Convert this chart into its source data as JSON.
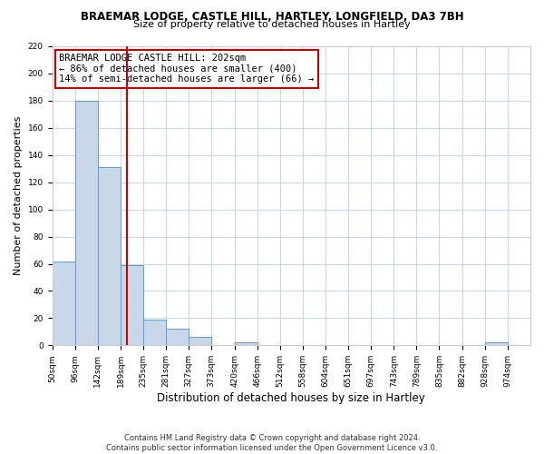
{
  "title": "BRAEMAR LODGE, CASTLE HILL, HARTLEY, LONGFIELD, DA3 7BH",
  "subtitle": "Size of property relative to detached houses in Hartley",
  "xlabel": "Distribution of detached houses by size in Hartley",
  "ylabel": "Number of detached properties",
  "footer_line1": "Contains HM Land Registry data © Crown copyright and database right 2024.",
  "footer_line2": "Contains public sector information licensed under the Open Government Licence v3.0.",
  "bins": [
    50,
    96,
    142,
    189,
    235,
    281,
    327,
    373,
    420,
    466,
    512,
    558,
    604,
    651,
    697,
    743,
    789,
    835,
    882,
    928,
    974
  ],
  "counts": [
    62,
    180,
    131,
    59,
    19,
    12,
    6,
    0,
    2,
    0,
    0,
    0,
    0,
    0,
    0,
    0,
    0,
    0,
    0,
    2
  ],
  "bar_color": "#c8d8e8",
  "bar_edge_color": "#5b9bd5",
  "vline_x": 202,
  "vline_color": "#cc0000",
  "annotation_box_color": "#cc0000",
  "annotation_line1": "BRAEMAR LODGE CASTLE HILL: 202sqm",
  "annotation_line2": "← 86% of detached houses are smaller (400)",
  "annotation_line3": "14% of semi-detached houses are larger (66) →",
  "ylim": [
    0,
    220
  ],
  "yticks": [
    0,
    20,
    40,
    60,
    80,
    100,
    120,
    140,
    160,
    180,
    200,
    220
  ],
  "tick_labels": [
    "50sqm",
    "96sqm",
    "142sqm",
    "189sqm",
    "235sqm",
    "281sqm",
    "327sqm",
    "373sqm",
    "420sqm",
    "466sqm",
    "512sqm",
    "558sqm",
    "604sqm",
    "651sqm",
    "697sqm",
    "743sqm",
    "789sqm",
    "835sqm",
    "882sqm",
    "928sqm",
    "974sqm"
  ],
  "grid_color": "#c8d8e8",
  "bg_color": "#ffffff",
  "title_fontsize": 8.5,
  "subtitle_fontsize": 8.0,
  "xlabel_fontsize": 8.5,
  "ylabel_fontsize": 8.0,
  "tick_fontsize": 6.5,
  "annotation_fontsize": 7.5,
  "footer_fontsize": 6.0
}
